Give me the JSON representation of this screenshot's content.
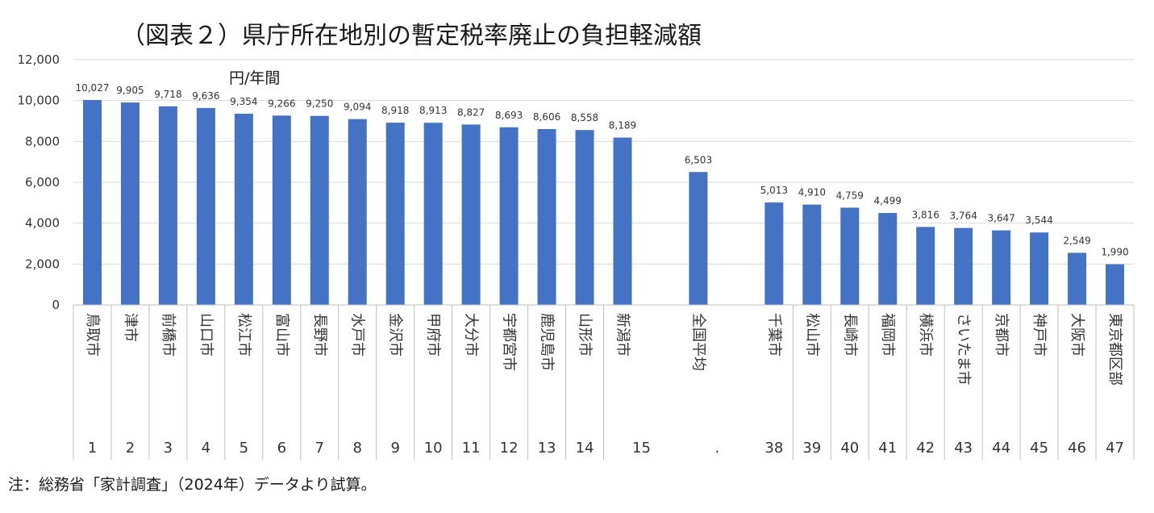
{
  "chart_data": {
    "type": "bar",
    "title": "（図表２）県庁所在地別の暫定税率廃止の負担軽減額",
    "ylabel": "円/年間",
    "ylim": [
      0,
      12000
    ],
    "yticks": [
      "0",
      "2,000",
      "4,000",
      "6,000",
      "8,000",
      "10,000",
      "12,000"
    ],
    "grid": true,
    "series": [
      {
        "name": "負担軽減額",
        "color": "#4472c4",
        "values": [
          10027,
          9905,
          9718,
          9636,
          9354,
          9266,
          9250,
          9094,
          8918,
          8913,
          8827,
          8693,
          8606,
          8558,
          8189,
          null,
          6503,
          null,
          5013,
          4910,
          4759,
          4499,
          3816,
          3764,
          3647,
          3544,
          2549,
          1990
        ]
      }
    ],
    "data_labels": [
      "10,027",
      "9,905",
      "9,718",
      "9,636",
      "9,354",
      "9,266",
      "9,250",
      "9,094",
      "8,918",
      "8,913",
      "8,827",
      "8,693",
      "8,606",
      "8,558",
      "8,189",
      "",
      "6,503",
      "",
      "5,013",
      "4,910",
      "4,759",
      "4,499",
      "3,816",
      "3,764",
      "3,647",
      "3,544",
      "2,549",
      "1,990"
    ],
    "categories": [
      "鳥取市",
      "津市",
      "前橋市",
      "山口市",
      "松江市",
      "富山市",
      "長野市",
      "水戸市",
      "金沢市",
      "甲府市",
      "大分市",
      "宇都宮市",
      "鹿児島市",
      "山形市",
      "新潟市",
      "",
      "全国平均",
      "",
      "千葉市",
      "松山市",
      "長崎市",
      "福岡市",
      "横浜市",
      "さいたま市",
      "京都市",
      "神戸市",
      "大阪市",
      "東京都区部"
    ],
    "ranks": [
      "1",
      "2",
      "3",
      "4",
      "5",
      "6",
      "7",
      "8",
      "9",
      "10",
      "11",
      "12",
      "13",
      "14",
      "15",
      ".",
      "38",
      "39",
      "40",
      "41",
      "42",
      "43",
      "44",
      "45",
      "46",
      "47"
    ]
  },
  "note": "注：総務省「家計調査」（2024年）データより試算。"
}
